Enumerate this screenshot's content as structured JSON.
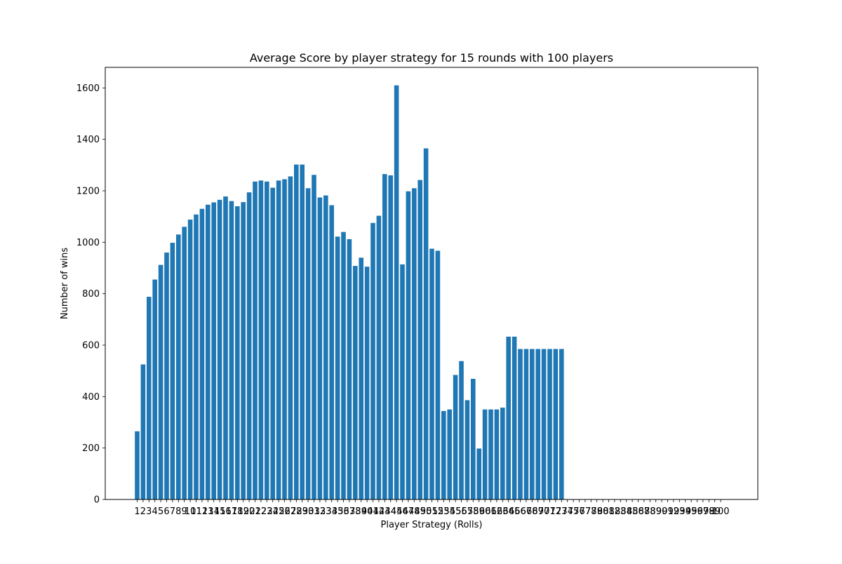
{
  "chart_data": {
    "type": "bar",
    "title": "Average Score by player strategy for 15 rounds with 100 players",
    "xlabel": "Player Strategy (Rolls)",
    "ylabel": "Number of wins",
    "ylim": [
      0,
      1680
    ],
    "yticks": [
      0,
      200,
      400,
      600,
      800,
      1000,
      1200,
      1400,
      1600
    ],
    "grid": false,
    "bar_color": "#1f77b4",
    "categories": [
      "1",
      "2",
      "3",
      "4",
      "5",
      "6",
      "7",
      "8",
      "9",
      "10",
      "11",
      "12",
      "13",
      "14",
      "15",
      "16",
      "17",
      "18",
      "19",
      "20",
      "21",
      "22",
      "23",
      "24",
      "25",
      "26",
      "27",
      "28",
      "29",
      "30",
      "31",
      "32",
      "33",
      "34",
      "35",
      "36",
      "37",
      "38",
      "39",
      "40",
      "41",
      "42",
      "43",
      "44",
      "45",
      "46",
      "47",
      "48",
      "49",
      "50",
      "51",
      "52",
      "53",
      "54",
      "55",
      "56",
      "57",
      "58",
      "59",
      "60",
      "61",
      "62",
      "63",
      "64",
      "65",
      "66",
      "67",
      "68",
      "69",
      "70",
      "71",
      "72",
      "73",
      "74",
      "75",
      "76",
      "77",
      "78",
      "79",
      "80",
      "81",
      "82",
      "83",
      "84",
      "85",
      "86",
      "87",
      "88",
      "89",
      "90",
      "91",
      "92",
      "93",
      "94",
      "95",
      "96",
      "97",
      "98",
      "99",
      "100"
    ],
    "values": [
      265,
      525,
      788,
      855,
      912,
      960,
      998,
      1030,
      1060,
      1088,
      1108,
      1130,
      1146,
      1155,
      1165,
      1178,
      1160,
      1140,
      1156,
      1194,
      1236,
      1240,
      1236,
      1212,
      1240,
      1245,
      1256,
      1302,
      1302,
      1210,
      1262,
      1174,
      1182,
      1144,
      1022,
      1040,
      1012,
      908,
      940,
      905,
      1075,
      1103,
      1265,
      1260,
      1610,
      914,
      1198,
      1210,
      1242,
      1365,
      975,
      967,
      344,
      350,
      484,
      538,
      386,
      469,
      198,
      350,
      350,
      350,
      357,
      633,
      633,
      585,
      585,
      585,
      585,
      585,
      585,
      585,
      585,
      0,
      0,
      0,
      0,
      0,
      0,
      0,
      0,
      0,
      0,
      0,
      0,
      0,
      0,
      0,
      0,
      0,
      0,
      0,
      0,
      0,
      0,
      0,
      0,
      0,
      0,
      0
    ]
  }
}
